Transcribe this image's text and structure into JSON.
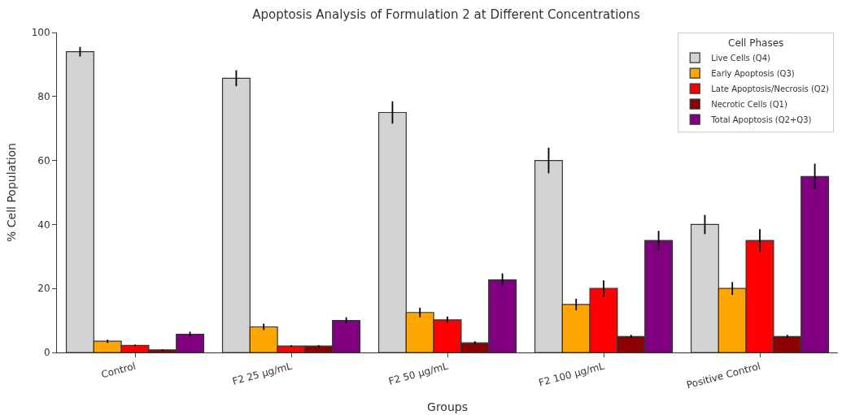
{
  "chart_data": {
    "type": "bar",
    "title": "Apoptosis Analysis of Formulation 2 at Different Concentrations",
    "xlabel": "Groups",
    "ylabel": "% Cell Population",
    "legend_title": "Cell Phases",
    "categories": [
      "Control",
      "F2 25 µg/mL",
      "F2 50 µg/mL",
      "F2 100 µg/mL",
      "Positive Control"
    ],
    "series": [
      {
        "name": "Live Cells (Q4)",
        "color": "#d3d3d3",
        "values": [
          94,
          85.7,
          75,
          60,
          40
        ],
        "errors": [
          1.5,
          2.5,
          3.5,
          4,
          3
        ]
      },
      {
        "name": "Early Apoptosis (Q3)",
        "color": "#ffa500",
        "values": [
          3.5,
          8,
          12.5,
          15,
          20
        ],
        "errors": [
          0.5,
          1,
          1.5,
          1.8,
          2
        ]
      },
      {
        "name": "Late Apoptosis/Necrosis (Q2)",
        "color": "#ff0000",
        "values": [
          2.2,
          2,
          10.2,
          20,
          35
        ],
        "errors": [
          0.3,
          0.3,
          1,
          2.5,
          3.5
        ]
      },
      {
        "name": "Necrotic Cells (Q1)",
        "color": "#8b0000",
        "values": [
          0.8,
          2,
          3,
          5,
          5
        ],
        "errors": [
          0.2,
          0.3,
          0.5,
          0.5,
          0.5
        ]
      },
      {
        "name": "Total Apoptosis (Q2+Q3)",
        "color": "#800080",
        "values": [
          5.7,
          10,
          22.7,
          35,
          55
        ],
        "errors": [
          0.8,
          1,
          2,
          3,
          4
        ]
      }
    ],
    "ylim": [
      0,
      100
    ],
    "yticks": [
      0,
      20,
      40,
      60,
      80,
      100
    ],
    "legend": "top right"
  }
}
